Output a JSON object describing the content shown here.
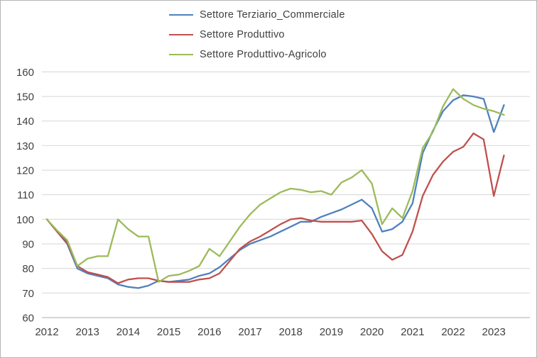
{
  "figure": {
    "background": "#ffffff",
    "border_color": "#b5b5b5",
    "gridline_color": "#d9d9d9",
    "axis_line_color": "#ababab",
    "tick_label_color": "#404040"
  },
  "chart_data": {
    "type": "line",
    "title": "",
    "xlabel": "",
    "ylabel": "",
    "grid": "horizontal",
    "legend_position": "top-center",
    "x_ticks": [
      2012,
      2013,
      2014,
      2015,
      2016,
      2017,
      2018,
      2019,
      2020,
      2021,
      2022,
      2023
    ],
    "y_ticks": [
      60,
      70,
      80,
      90,
      100,
      110,
      120,
      130,
      140,
      150,
      160
    ],
    "ylim": [
      60,
      160
    ],
    "xlim": [
      2011.85,
      2023.6
    ],
    "x": [
      2012.0,
      2012.25,
      2012.5,
      2012.75,
      2013.0,
      2013.25,
      2013.5,
      2013.75,
      2014.0,
      2014.25,
      2014.5,
      2014.75,
      2015.0,
      2015.25,
      2015.5,
      2015.75,
      2016.0,
      2016.25,
      2016.5,
      2016.75,
      2017.0,
      2017.25,
      2017.5,
      2017.75,
      2018.0,
      2018.25,
      2018.5,
      2018.75,
      2019.0,
      2019.25,
      2019.5,
      2019.75,
      2020.0,
      2020.25,
      2020.5,
      2020.75,
      2021.0,
      2021.25,
      2021.5,
      2021.75,
      2022.0,
      2022.25,
      2022.5,
      2022.75,
      2023.0,
      2023.25
    ],
    "series": [
      {
        "name": "Settore Terziario_Commerciale",
        "color": "#4F81BD",
        "values": [
          100,
          95,
          90,
          80,
          78,
          77,
          76,
          73.5,
          72.5,
          72,
          73,
          75,
          74.5,
          75,
          75.5,
          77,
          78,
          80.5,
          84,
          87.5,
          90,
          91.5,
          93,
          95,
          97,
          99,
          99,
          101,
          102.5,
          104,
          106,
          108,
          104.5,
          95,
          96,
          99,
          106.5,
          127,
          136,
          144,
          148.5,
          150.5,
          150,
          149,
          135.5,
          146.5
        ]
      },
      {
        "name": "Settore Produttivo",
        "color": "#C0504D",
        "values": [
          100,
          95,
          90.5,
          81,
          78.5,
          77.5,
          76.5,
          74,
          75.5,
          76,
          76,
          75,
          74.5,
          74.5,
          74.5,
          75.5,
          76,
          78,
          83,
          88,
          91,
          93,
          95.5,
          98,
          100,
          100.5,
          99.5,
          99,
          99,
          99,
          99,
          99.5,
          94,
          87,
          83.5,
          85.5,
          95,
          109.5,
          118,
          123.5,
          127.5,
          129.5,
          135,
          132.5,
          109.5,
          126
        ]
      },
      {
        "name": "Settore Produttivo-Agricolo",
        "color": "#9BBB59",
        "values": [
          100,
          95.5,
          91.5,
          81,
          84,
          85,
          85,
          100,
          96,
          93,
          93,
          74.5,
          77,
          77.5,
          79,
          81,
          88,
          85,
          91,
          97,
          102,
          106,
          108.5,
          111,
          112.5,
          112,
          111,
          111.5,
          110,
          115,
          117,
          120,
          114.5,
          98,
          104.5,
          100.5,
          111.5,
          129,
          135.5,
          146,
          153,
          149,
          146.5,
          145,
          144,
          142.5
        ]
      }
    ]
  }
}
